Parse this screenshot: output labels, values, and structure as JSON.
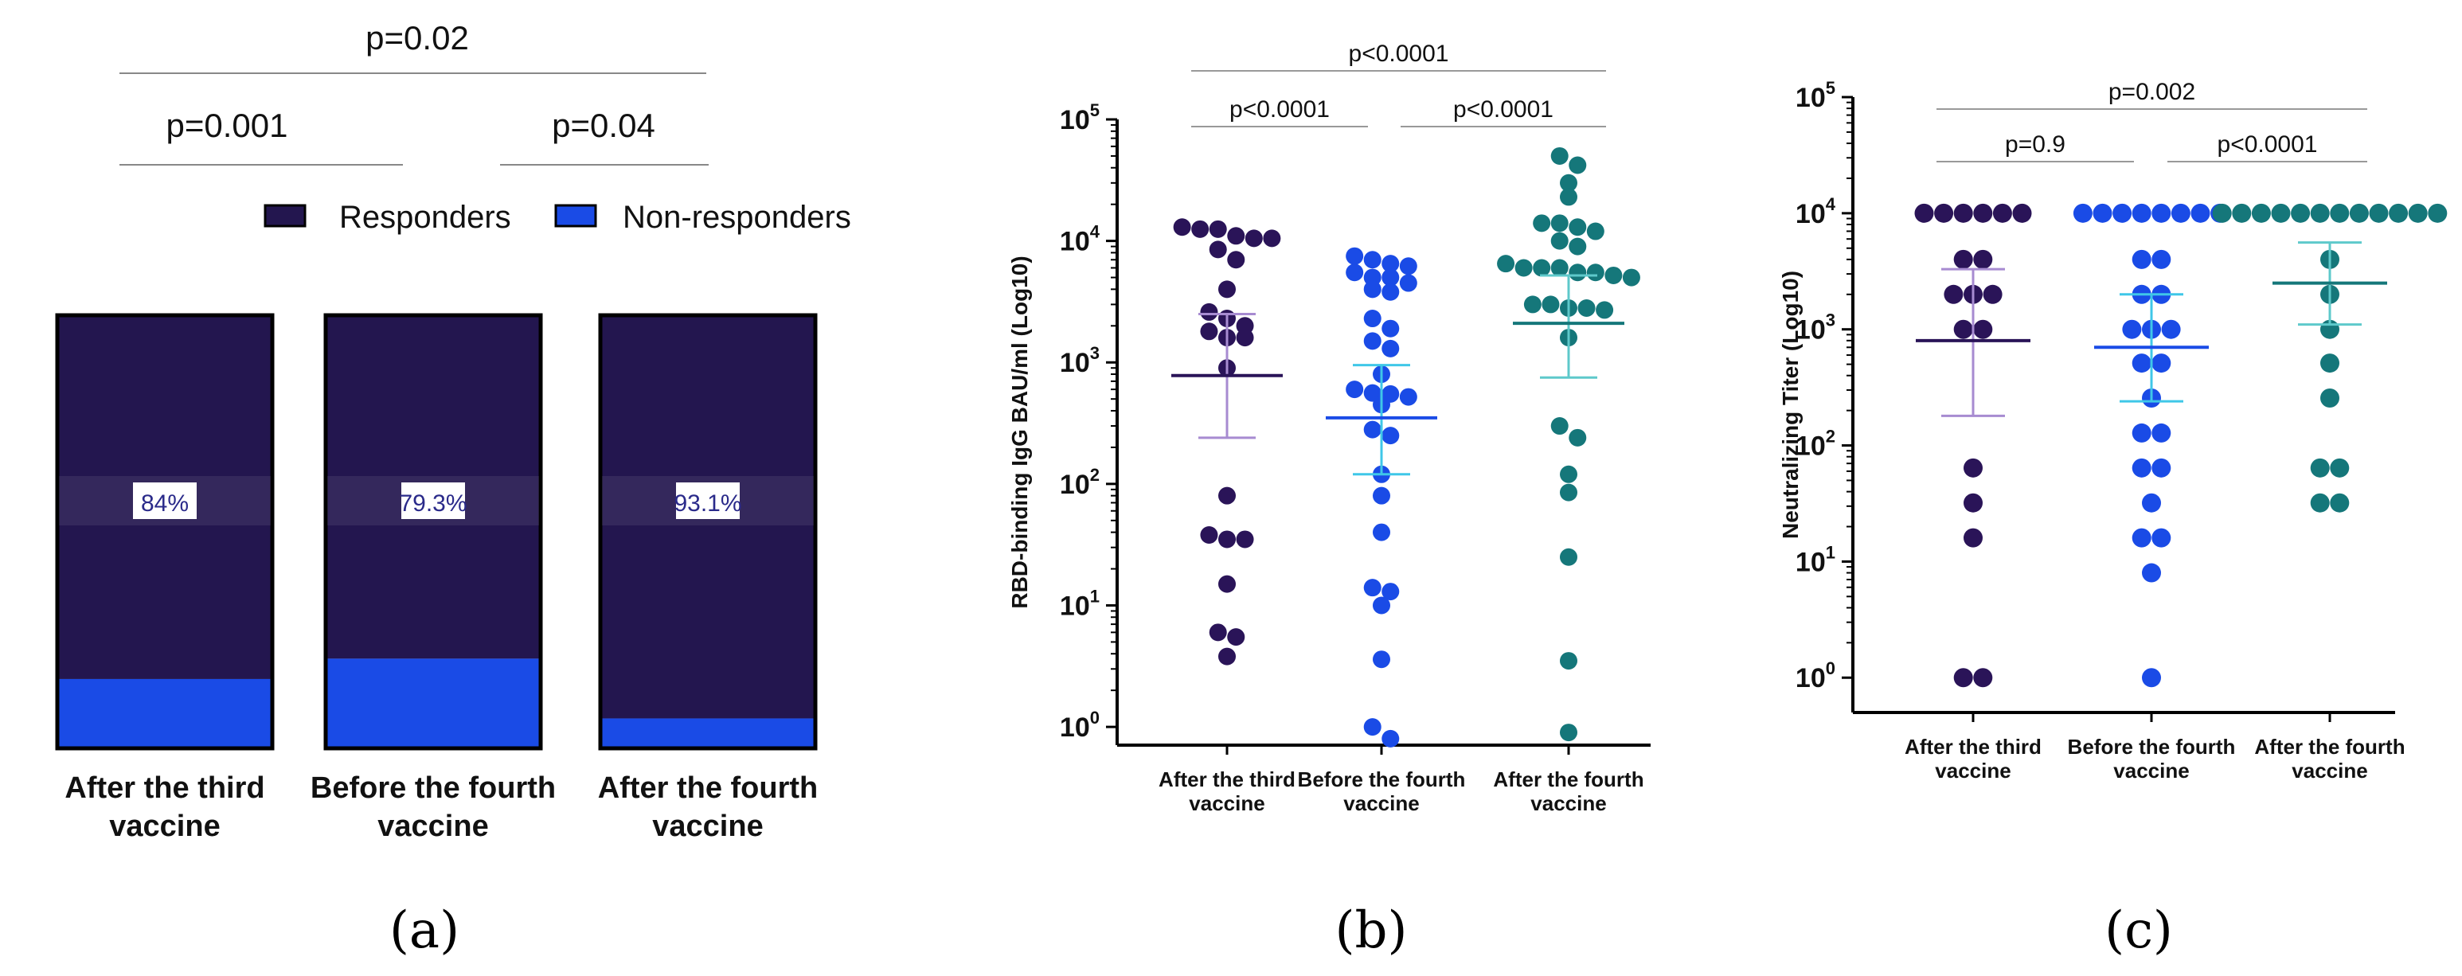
{
  "colors": {
    "dark_purple": "#2a1458",
    "navy_bar": "#23164f",
    "blue": "#1a4be6",
    "teal": "#15777a",
    "light_purple": "#a78bd1",
    "light_blue": "#3fc7e8",
    "light_teal": "#5ec9cb",
    "sig_line": "#999999",
    "percent_text": "#2a2a8a"
  },
  "panel_labels": {
    "a": "(a)",
    "b": "(b)",
    "c": "(c)"
  },
  "chart_data": [
    {
      "id": "a",
      "type": "bar",
      "stacked": true,
      "categories": [
        "After the third\nvaccine",
        "Before the fourth\nvaccine",
        "After the fourth\nvaccine"
      ],
      "series": [
        {
          "name": "Responders",
          "values": [
            84,
            79.3,
            93.1
          ],
          "color": "#23164f"
        },
        {
          "name": "Non-responders",
          "values": [
            16,
            20.7,
            6.9
          ],
          "color": "#1a4be6"
        }
      ],
      "percent_labels": [
        "84%",
        "79.3%",
        "93.1%"
      ],
      "legend": {
        "position": "top-right",
        "entries": [
          "Responders",
          "Non-responders"
        ]
      },
      "comparisons": [
        {
          "label": "p=0.02",
          "from": 0,
          "to": 2
        },
        {
          "label": "p=0.001",
          "from": 0,
          "to": 1
        },
        {
          "label": "p=0.04",
          "from": 1,
          "to": 2
        }
      ],
      "ylim": [
        0,
        100
      ]
    },
    {
      "id": "b",
      "type": "scatter",
      "scale": "log10",
      "ylabel": "RBD-binding IgG BAU/ml (Log10)",
      "y_ticks": [
        0,
        1,
        2,
        3,
        4,
        5
      ],
      "ylim_log": [
        -0.15,
        5
      ],
      "categories": [
        "After the third\nvaccine",
        "Before the fourth\nvaccine",
        "After the fourth\nvaccine"
      ],
      "groups": [
        {
          "name": "After the third vaccine",
          "color": "#2a1458",
          "summary_color": "#a78bd1",
          "values": [
            12500,
            11000,
            10500,
            13000,
            8500,
            10500,
            12500,
            7000,
            4000,
            2300,
            1800,
            2600,
            2000,
            1600,
            1600,
            900,
            80,
            38,
            35,
            35,
            15,
            6,
            5.5,
            3.8
          ],
          "mean": 780,
          "err_low": 240,
          "err_high": 2500
        },
        {
          "name": "Before the fourth vaccine",
          "color": "#1a4be6",
          "summary_color": "#3fc7e8",
          "values": [
            7500,
            7000,
            6500,
            6200,
            5500,
            5000,
            5000,
            4500,
            4000,
            3800,
            2300,
            1900,
            1500,
            1300,
            800,
            600,
            550,
            560,
            520,
            450,
            280,
            250,
            120,
            80,
            40,
            14,
            13,
            10,
            3.6,
            1.0,
            0.8
          ],
          "mean": 350,
          "err_low": 120,
          "err_high": 950
        },
        {
          "name": "After the fourth vaccine",
          "color": "#15777a",
          "summary_color": "#5ec9cb",
          "values": [
            50000,
            42000,
            30000,
            23000,
            14000,
            13000,
            10000,
            14000,
            12000,
            9000,
            6500,
            6000,
            6000,
            5500,
            5000,
            5500,
            5200,
            6000,
            3000,
            2700,
            2800,
            2800,
            3000,
            1600,
            300,
            240,
            120,
            85,
            25,
            3.5,
            0.9
          ],
          "mean": 2100,
          "err_low": 750,
          "err_high": 5200
        }
      ],
      "comparisons": [
        {
          "label": "p<0.0001",
          "from": 0,
          "to": 2
        },
        {
          "label": "p<0.0001",
          "from": 0,
          "to": 1
        },
        {
          "label": "p<0.0001",
          "from": 1,
          "to": 2
        }
      ]
    },
    {
      "id": "c",
      "type": "scatter",
      "scale": "log10",
      "ylabel": "Neutralizing Titer (Log10)",
      "y_ticks": [
        0,
        1,
        2,
        3,
        4,
        5
      ],
      "ylim_log": [
        -0.3,
        5
      ],
      "categories": [
        "After the third\nvaccine",
        "Before the fourth\nvaccine",
        "After the fourth\nvaccine"
      ],
      "groups": [
        {
          "name": "After the third vaccine",
          "color": "#2a1458",
          "summary_color": "#a78bd1",
          "values": [
            10000,
            10000,
            10000,
            10000,
            10000,
            10000,
            4000,
            4000,
            2000,
            2000,
            2000,
            1000,
            1000,
            64,
            32,
            16,
            1,
            1
          ],
          "mean": 800,
          "err_low": 180,
          "err_high": 3300
        },
        {
          "name": "Before the fourth vaccine",
          "color": "#1a4be6",
          "summary_color": "#3fc7e8",
          "values": [
            10000,
            10000,
            10000,
            10000,
            10000,
            10000,
            10000,
            10000,
            4000,
            4000,
            2000,
            2000,
            1000,
            1000,
            1000,
            512,
            512,
            256,
            128,
            128,
            64,
            64,
            32,
            16,
            16,
            8,
            1
          ],
          "mean": 700,
          "err_low": 240,
          "err_high": 2000
        },
        {
          "name": "After the fourth vaccine",
          "color": "#15777a",
          "summary_color": "#5ec9cb",
          "values": [
            10000,
            10000,
            10000,
            10000,
            10000,
            10000,
            10000,
            10000,
            10000,
            10000,
            10000,
            10000,
            4000,
            2000,
            1000,
            512,
            256,
            64,
            64,
            32,
            32
          ],
          "mean": 2500,
          "err_low": 1100,
          "err_high": 5600
        }
      ],
      "comparisons": [
        {
          "label": "p=0.002",
          "from": 0,
          "to": 2
        },
        {
          "label": "p=0.9",
          "from": 0,
          "to": 1
        },
        {
          "label": "p<0.0001",
          "from": 1,
          "to": 2
        }
      ]
    }
  ]
}
